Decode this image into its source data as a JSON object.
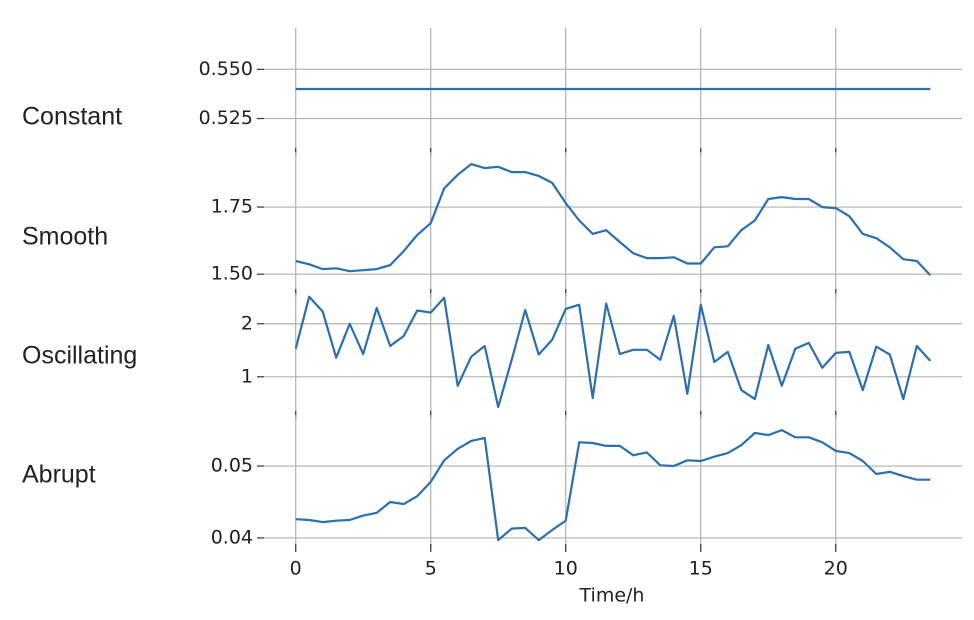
{
  "chart_data": {
    "type": "line",
    "xlabel": "Time/h",
    "x": [
      0,
      0.5,
      1,
      1.5,
      2,
      2.5,
      3,
      3.5,
      4,
      4.5,
      5,
      5.5,
      6,
      6.5,
      7,
      7.5,
      8,
      8.5,
      9,
      9.5,
      10,
      10.5,
      11,
      11.5,
      12,
      12.5,
      13,
      13.5,
      14,
      14.5,
      15,
      15.5,
      16,
      16.5,
      17,
      17.5,
      18,
      18.5,
      19,
      19.5,
      20,
      20.5,
      21,
      21.5,
      22,
      22.5,
      23,
      23.5
    ],
    "xlim": [
      -1.175,
      24.675
    ],
    "xticks": [
      0,
      5,
      10,
      15,
      20
    ],
    "grid": true,
    "series": [
      {
        "name": "Constant",
        "color": "#2b6fae",
        "values": [
          0.54,
          0.54,
          0.54,
          0.54,
          0.54,
          0.54,
          0.54,
          0.54,
          0.54,
          0.54,
          0.54,
          0.54,
          0.54,
          0.54,
          0.54,
          0.54,
          0.54,
          0.54,
          0.54,
          0.54,
          0.54,
          0.54,
          0.54,
          0.54,
          0.54,
          0.54,
          0.54,
          0.54,
          0.54,
          0.54,
          0.54,
          0.54,
          0.54,
          0.54,
          0.54,
          0.54,
          0.54,
          0.54,
          0.54,
          0.54,
          0.54,
          0.54,
          0.54,
          0.54,
          0.54,
          0.54,
          0.54,
          0.54
        ],
        "ylim": [
          0.508,
          0.571
        ],
        "yticks": [
          {
            "value": 0.525,
            "label": "0.525"
          },
          {
            "value": 0.55,
            "label": "0.550"
          }
        ]
      },
      {
        "name": "Smooth",
        "color": "#2b6fae",
        "values": [
          1.549,
          1.537,
          1.519,
          1.522,
          1.511,
          1.515,
          1.519,
          1.534,
          1.586,
          1.646,
          1.69,
          1.82,
          1.87,
          1.91,
          1.895,
          1.9,
          1.88,
          1.88,
          1.866,
          1.84,
          1.765,
          1.7,
          1.65,
          1.664,
          1.62,
          1.578,
          1.56,
          1.56,
          1.563,
          1.54,
          1.54,
          1.6,
          1.604,
          1.664,
          1.7,
          1.78,
          1.787,
          1.78,
          1.78,
          1.75,
          1.746,
          1.716,
          1.65,
          1.634,
          1.6,
          1.556,
          1.549,
          1.496
        ],
        "ylim": [
          1.43,
          1.955
        ],
        "yticks": [
          {
            "value": 1.5,
            "label": "1.50"
          },
          1.75
        ]
      },
      {
        "name": "Oscillating",
        "color": "#2b6fae",
        "values": [
          1.53,
          2.51,
          2.23,
          1.36,
          2.0,
          1.43,
          2.3,
          1.58,
          1.77,
          2.25,
          2.21,
          2.49,
          0.83,
          1.38,
          1.58,
          0.43,
          1.32,
          2.26,
          1.42,
          1.7,
          2.28,
          2.36,
          0.6,
          2.38,
          1.43,
          1.51,
          1.51,
          1.32,
          2.15,
          0.68,
          2.36,
          1.28,
          1.47,
          0.75,
          0.58,
          1.6,
          0.83,
          1.53,
          1.64,
          1.17,
          1.45,
          1.47,
          0.75,
          1.57,
          1.42,
          0.58,
          1.58,
          1.3
        ],
        "ylim": [
          0.28,
          2.58
        ],
        "yticks": [
          1,
          2
        ]
      },
      {
        "name": "Abrupt",
        "color": "#2b6fae",
        "values": [
          0.0426,
          0.0425,
          0.0422,
          0.0424,
          0.0425,
          0.0431,
          0.0435,
          0.045,
          0.0447,
          0.0458,
          0.0478,
          0.0508,
          0.0524,
          0.0535,
          0.0539,
          0.0397,
          0.0413,
          0.0414,
          0.0397,
          0.0411,
          0.0424,
          0.0533,
          0.0532,
          0.0528,
          0.0528,
          0.0515,
          0.0519,
          0.0501,
          0.05,
          0.0508,
          0.0507,
          0.0513,
          0.0518,
          0.0529,
          0.0546,
          0.0543,
          0.055,
          0.054,
          0.054,
          0.0533,
          0.0521,
          0.0518,
          0.0507,
          0.0489,
          0.0492,
          0.0486,
          0.0481,
          0.0481
        ],
        "ylim": [
          0.0386,
          0.0571
        ],
        "yticks": [
          0.04,
          0.05
        ]
      }
    ]
  }
}
